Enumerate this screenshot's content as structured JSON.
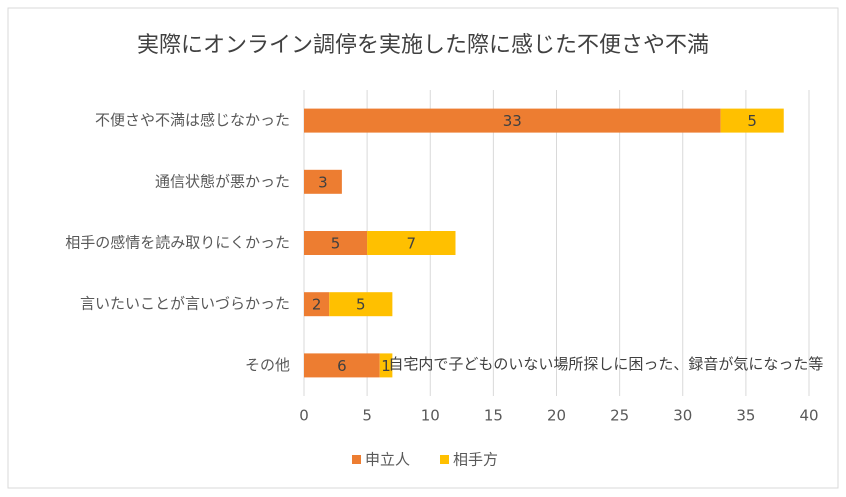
{
  "chart_data": {
    "type": "bar",
    "title": "実際にオンライン調停を実施した際に感じた不便さや不満",
    "categories": [
      "不便さや不満は感じなかった",
      "通信状態が悪かった",
      "相手の感情を読み取りにくかった",
      "言いたいことが言いづらかった",
      "その他"
    ],
    "series": [
      {
        "name": "申立人",
        "color": "#ed7d31",
        "values": [
          33,
          3,
          5,
          2,
          6
        ]
      },
      {
        "name": "相手方",
        "color": "#ffc000",
        "values": [
          5,
          null,
          7,
          5,
          1
        ]
      }
    ],
    "annotation": "自宅内で子どものいない場所探しに困った、録音が気になった等",
    "xlim": [
      0,
      40
    ],
    "xticks": [
      0,
      5,
      10,
      15,
      20,
      25,
      30,
      35,
      40
    ],
    "grid": true,
    "legend": "bottom"
  }
}
